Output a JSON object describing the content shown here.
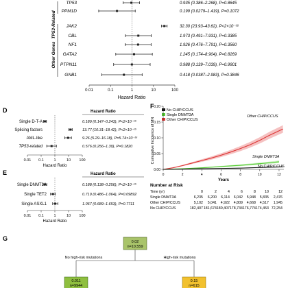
{
  "panel_top": {
    "group_tp53": "TP53-Related",
    "group_other": "Other Genes",
    "rows": [
      {
        "gene": "TP53",
        "hr": 0.935,
        "lo": 0.386,
        "hi": 2.268,
        "text": "0.935 (0.386–2.268), P=0.8645",
        "group": "tp53"
      },
      {
        "gene": "PPM1D",
        "hr": 0.199,
        "lo": 0.0279,
        "hi": 1.419,
        "text": "0.199 (0.0279–1.419), P=0.1072",
        "group": "tp53"
      },
      {
        "gene": "JAK2",
        "hr": 32.3,
        "lo": 23.93,
        "hi": 43.62,
        "text": "32.30 (23.93–43.62), P<2×10⁻¹⁶",
        "group": "other"
      },
      {
        "gene": "CBL",
        "hr": 1.973,
        "lo": 0.491,
        "hi": 7.931,
        "text": "1.973 (0.491–7.931), P=0.3385",
        "group": "other"
      },
      {
        "gene": "NF1",
        "hr": 1.926,
        "lo": 0.476,
        "hi": 7.791,
        "text": "1.926 (0.476–7.791), P=0.3560",
        "group": "other"
      },
      {
        "gene": "GATA2",
        "hr": 1.245,
        "lo": 0.174,
        "hi": 8.904,
        "text": "1.245 (0.174–8.904), P=0.8269",
        "group": "other"
      },
      {
        "gene": "PTPN11",
        "hr": 0.988,
        "lo": 0.139,
        "hi": 7.039,
        "text": "0.988 (0.139–7.039), P=0.9901",
        "group": "other"
      },
      {
        "gene": "GNB1",
        "hr": 0.418,
        "lo": 0.0387,
        "hi": 2.983,
        "text": "0.418 (0.0387–2.983), P=0.3846",
        "group": "other"
      }
    ],
    "ticks": [
      "0.01",
      "0.1",
      "1",
      "10",
      "100"
    ],
    "xlabel": "Hazard Ratio"
  },
  "panel_d": {
    "letter": "D",
    "header": "Hazard Ratio",
    "rows": [
      {
        "label": "Single D-T-A",
        "hr": 0.189,
        "lo": 0.147,
        "hi": 0.243,
        "text": "0.189 (0.147–0.243), P<2×10⁻¹⁶",
        "italic": false
      },
      {
        "label": "Splicing factors",
        "hr": 13.77,
        "lo": 10.31,
        "hi": 18.42,
        "text": "13.77 (10.31–18.42), P<2×10⁻¹⁶",
        "italic": false
      },
      {
        "label": "AML-like",
        "hr": 9.26,
        "lo": 5.29,
        "hi": 16.18,
        "text": "9.26 (5.29–16.18), P=5.74×10⁻¹⁵",
        "italic": false
      },
      {
        "label": "TP53-related",
        "hr": 0.576,
        "lo": 0.256,
        "hi": 1.3,
        "text": "0.576 (0.256–1.30), P=0.1820",
        "italic": true
      }
    ],
    "ticks": [
      "0.01",
      "0.1",
      "1",
      "10",
      "100"
    ],
    "xlabel": "Hazard Ratio"
  },
  "panel_e": {
    "letter": "E",
    "header": "Hazard Ratio",
    "rows": [
      {
        "label": "Single DNMT3A",
        "hr": 0.188,
        "lo": 0.138,
        "hi": 0.256,
        "text": "0.188 (0.138–0.256), P<2×10⁻¹⁶"
      },
      {
        "label": "Single TET2",
        "hr": 0.719,
        "lo": 0.486,
        "hi": 1.064,
        "text": "0.719 (0.486–1.064), P=0.09892"
      },
      {
        "label": "Single ASXL1",
        "hr": 1.067,
        "lo": 0.689,
        "hi": 1.653,
        "text": "1.067 (0.689–1.653), P=0.7711"
      }
    ],
    "ticks": [
      "0.01",
      "0.1",
      "1",
      "10",
      "100"
    ],
    "xlabel": "Hazard Ratio"
  },
  "panel_f": {
    "letter": "F",
    "legend": [
      "No CHIP/CCUS",
      "Single DNMT3A",
      "Other CHIP/CCUS"
    ],
    "colors": {
      "no": "#111111",
      "dnmt3a": "#55cc33",
      "other": "#dd3333"
    },
    "ylabel": "Cumulative Incidence of MN",
    "xlabel": "Years",
    "yticks": [
      "0.00",
      "0.05",
      "0.10",
      "0.15",
      "0.20"
    ],
    "xticks": [
      "0",
      "2",
      "4",
      "6",
      "8",
      "10",
      "12"
    ],
    "annotations": {
      "other": "Other CHIP/CCUS",
      "dnmt3a": "Single DNMT3A",
      "no": "No CHIP/CCUS"
    },
    "chart_data": {
      "type": "line",
      "xlabel": "Years",
      "ylabel": "Cumulative Incidence of MN",
      "xlim": [
        0,
        12.5
      ],
      "ylim": [
        0,
        0.2
      ],
      "series": [
        {
          "name": "Other CHIP/CCUS",
          "x": [
            0,
            1,
            2,
            3,
            4,
            5,
            6,
            7,
            8,
            9,
            10,
            11,
            12.4
          ],
          "y": [
            0,
            0.005,
            0.012,
            0.02,
            0.028,
            0.036,
            0.045,
            0.055,
            0.066,
            0.078,
            0.092,
            0.108,
            0.128
          ]
        },
        {
          "name": "Single DNMT3A",
          "x": [
            0,
            2,
            4,
            6,
            8,
            10,
            12
          ],
          "y": [
            0,
            0.002,
            0.005,
            0.009,
            0.013,
            0.018,
            0.024
          ]
        },
        {
          "name": "No CHIP/CCUS",
          "x": [
            0,
            2,
            4,
            6,
            8,
            10,
            12.4
          ],
          "y": [
            0,
            0.001,
            0.002,
            0.003,
            0.004,
            0.006,
            0.008
          ]
        }
      ]
    },
    "risk": {
      "title": "Number at Risk",
      "time_label": "Time (yr)",
      "times": [
        "0",
        "2",
        "4",
        "6",
        "8",
        "10",
        "12"
      ],
      "rows": [
        {
          "label": "Single DNMT3A",
          "values": [
            "6,235",
            "6,200",
            "6,114",
            "6,042",
            "5,948",
            "5,835",
            "2,476"
          ]
        },
        {
          "label": "Other CHIP/CCUS",
          "values": [
            "5,102",
            "5,041",
            "4,922",
            "4,809",
            "4,668",
            "4,517",
            "1,945"
          ]
        },
        {
          "label": "No CHIP/CCUS",
          "values": [
            "182,407",
            "181,674",
            "180,407",
            "178,734",
            "176,774",
            "174,453",
            "72,254"
          ]
        }
      ]
    }
  },
  "panel_g": {
    "letter": "G",
    "root": {
      "value": "0.02",
      "n": "n=10,559"
    },
    "left_branch": "No high-risk mutations",
    "right_branch": "High-risk mutations",
    "left": {
      "value": "0.011",
      "n": "n=9944"
    },
    "right": {
      "value": "0.15",
      "n": "n=615"
    },
    "colors": {
      "root": "#a9c46a",
      "left": "#8fbf3f",
      "right": "#f2c12e"
    }
  }
}
